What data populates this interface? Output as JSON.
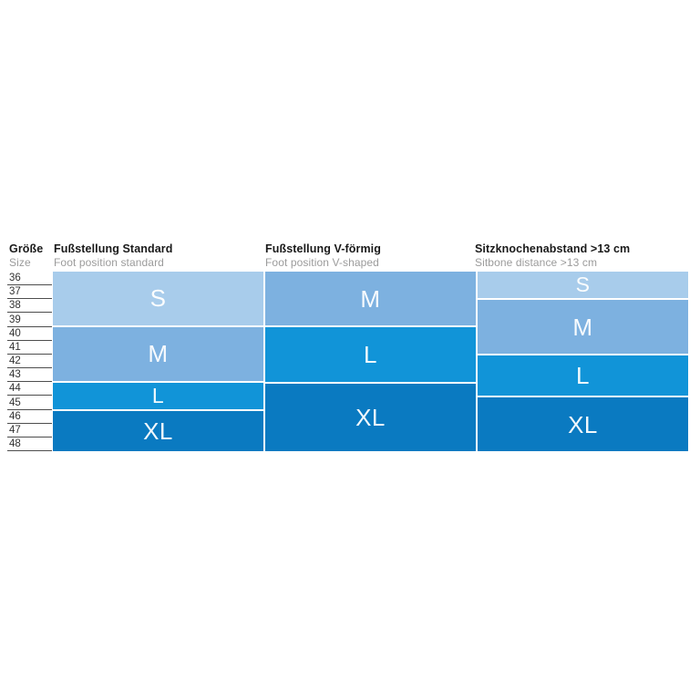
{
  "colors": {
    "light": "#a8cceb",
    "mid": "#7db1e0",
    "bright": "#1194d8",
    "dark": "#0a7ac1",
    "title_text": "#1a1a1a",
    "subtitle_text": "#9b9b9b",
    "row_line": "#4d4d4d",
    "block_label": "#ffffff"
  },
  "size_column": {
    "title": "Größe",
    "subtitle": "Size",
    "sizes": [
      "36",
      "37",
      "38",
      "39",
      "40",
      "41",
      "42",
      "43",
      "44",
      "45",
      "46",
      "47",
      "48"
    ]
  },
  "columns": [
    {
      "key": "foot-position-standard",
      "title": "Fußstellung Standard",
      "subtitle": "Foot position standard",
      "blocks": [
        {
          "label": "S",
          "rows": 4,
          "sizes": "36–39",
          "color_key": "light"
        },
        {
          "label": "M",
          "rows": 4,
          "sizes": "40–43",
          "color_key": "mid"
        },
        {
          "label": "L",
          "rows": 2,
          "sizes": "44–45",
          "color_key": "bright"
        },
        {
          "label": "XL",
          "rows": 3,
          "sizes": "46–48",
          "color_key": "dark"
        }
      ]
    },
    {
      "key": "foot-position-v-shaped",
      "title": "Fußstellung V-förmig",
      "subtitle": "Foot position V-shaped",
      "blocks": [
        {
          "label": "M",
          "rows": 4,
          "sizes": "36–39",
          "color_key": "mid"
        },
        {
          "label": "L",
          "rows": 4,
          "sizes": "40–43",
          "color_key": "bright"
        },
        {
          "label": "XL",
          "rows": 5,
          "sizes": "44–48",
          "color_key": "dark"
        }
      ]
    },
    {
      "key": "sitbone-distance",
      "title": "Sitzknochenabstand >13 cm",
      "subtitle": "Sitbone distance >13 cm",
      "blocks": [
        {
          "label": "S",
          "rows": 2,
          "sizes": "36–37",
          "color_key": "light"
        },
        {
          "label": "M",
          "rows": 4,
          "sizes": "38–41",
          "color_key": "mid"
        },
        {
          "label": "L",
          "rows": 3,
          "sizes": "42–44",
          "color_key": "bright"
        },
        {
          "label": "XL",
          "rows": 4,
          "sizes": "45–48",
          "color_key": "dark"
        }
      ]
    }
  ],
  "chart_data": {
    "type": "table",
    "title": "Size chart: shoe size to product size (S/M/L/XL)",
    "row_header": {
      "title": "Größe",
      "subtitle": "Size"
    },
    "sizes": [
      36,
      37,
      38,
      39,
      40,
      41,
      42,
      43,
      44,
      45,
      46,
      47,
      48
    ],
    "columns": [
      {
        "title": "Fußstellung Standard",
        "subtitle": "Foot position standard",
        "mapping": [
          {
            "size_label": "S",
            "shoe_sizes": [
              36,
              39
            ]
          },
          {
            "size_label": "M",
            "shoe_sizes": [
              40,
              43
            ]
          },
          {
            "size_label": "L",
            "shoe_sizes": [
              44,
              45
            ]
          },
          {
            "size_label": "XL",
            "shoe_sizes": [
              46,
              48
            ]
          }
        ]
      },
      {
        "title": "Fußstellung V-förmig",
        "subtitle": "Foot position V-shaped",
        "mapping": [
          {
            "size_label": "M",
            "shoe_sizes": [
              36,
              39
            ]
          },
          {
            "size_label": "L",
            "shoe_sizes": [
              40,
              43
            ]
          },
          {
            "size_label": "XL",
            "shoe_sizes": [
              44,
              48
            ]
          }
        ]
      },
      {
        "title": "Sitzknochenabstand >13 cm",
        "subtitle": "Sitbone distance >13 cm",
        "mapping": [
          {
            "size_label": "S",
            "shoe_sizes": [
              36,
              37
            ]
          },
          {
            "size_label": "M",
            "shoe_sizes": [
              38,
              41
            ]
          },
          {
            "size_label": "L",
            "shoe_sizes": [
              42,
              44
            ]
          },
          {
            "size_label": "XL",
            "shoe_sizes": [
              45,
              48
            ]
          }
        ]
      }
    ],
    "layout": {
      "legend_position": "none",
      "grid": "row-lines-left-column-only",
      "palette_light_to_dark": [
        "S",
        "M",
        "L",
        "XL"
      ]
    }
  }
}
